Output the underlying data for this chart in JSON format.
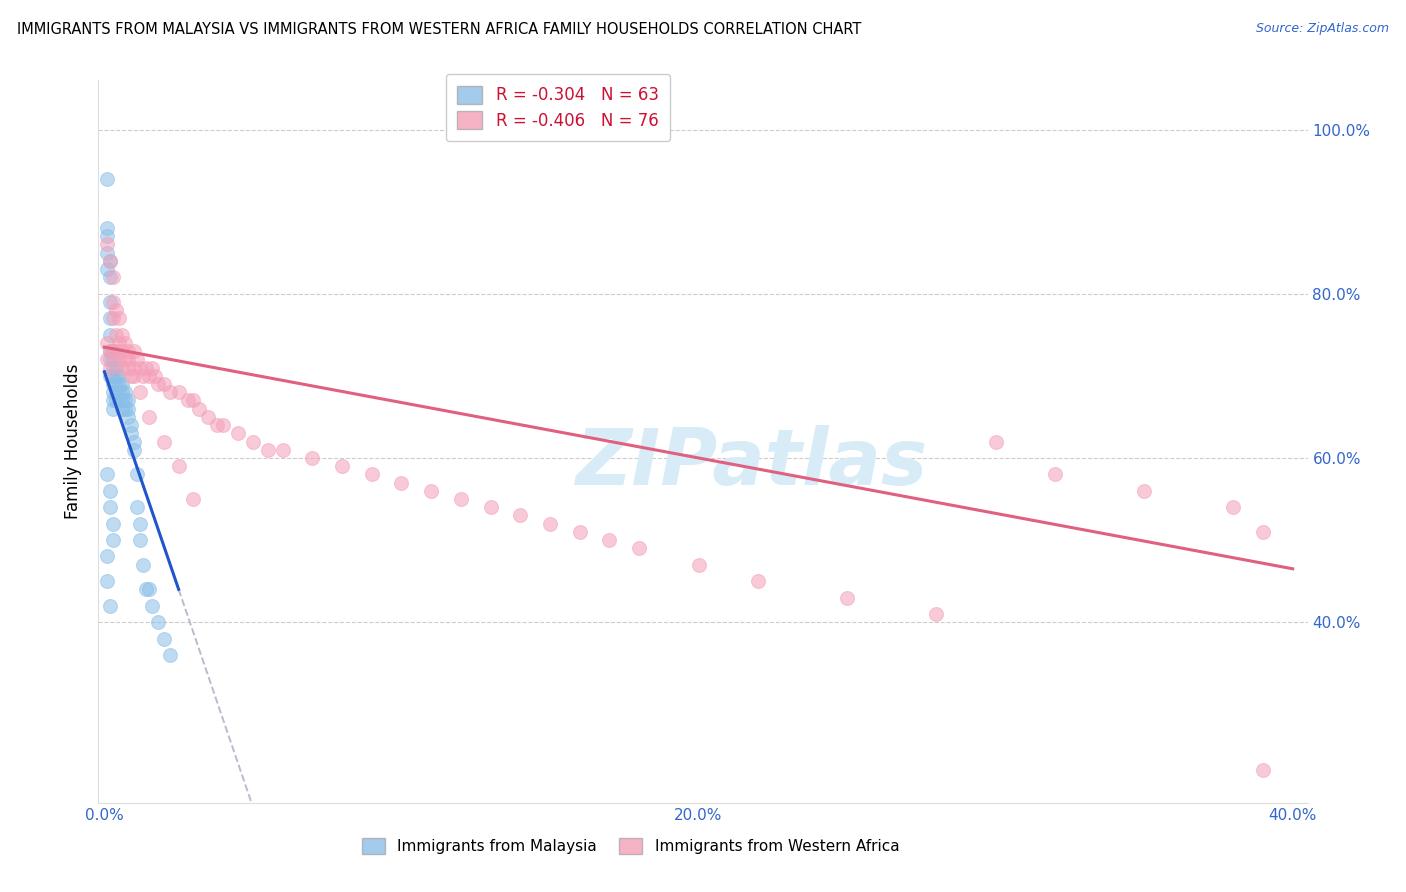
{
  "title": "IMMIGRANTS FROM MALAYSIA VS IMMIGRANTS FROM WESTERN AFRICA FAMILY HOUSEHOLDS CORRELATION CHART",
  "source_text": "Source: ZipAtlas.com",
  "ylabel": "Family Households",
  "right_ytick_labels": [
    "100.0%",
    "80.0%",
    "60.0%",
    "40.0%"
  ],
  "right_ytick_values": [
    1.0,
    0.8,
    0.6,
    0.4
  ],
  "xlim": [
    -0.002,
    0.405
  ],
  "ylim": [
    0.18,
    1.06
  ],
  "xtick_positions": [
    0.0,
    0.05,
    0.1,
    0.15,
    0.2,
    0.25,
    0.3,
    0.35,
    0.4
  ],
  "xtick_labels": [
    "0.0%",
    "",
    "",
    "",
    "20.0%",
    "",
    "",
    "",
    "40.0%"
  ],
  "grid_yticks": [
    0.4,
    0.6,
    0.8,
    1.0
  ],
  "grid_color": "#cccccc",
  "background_color": "#ffffff",
  "malaysia_color": "#8bbfe8",
  "western_africa_color": "#f4a0b8",
  "malaysia_line_color": "#2255cc",
  "western_africa_line_color": "#e06080",
  "dashed_line_color": "#bbbbcc",
  "R_malaysia": -0.304,
  "N_malaysia": 63,
  "R_western_africa": -0.406,
  "N_western_africa": 76,
  "legend_label_1": "Immigrants from Malaysia",
  "legend_label_2": "Immigrants from Western Africa",
  "watermark": "ZIPatlas",
  "watermark_color": "#d8ecf8",
  "malaysia_x": [
    0.001,
    0.001,
    0.001,
    0.001,
    0.001,
    0.002,
    0.002,
    0.002,
    0.002,
    0.002,
    0.002,
    0.002,
    0.002,
    0.003,
    0.003,
    0.003,
    0.003,
    0.003,
    0.003,
    0.003,
    0.003,
    0.004,
    0.004,
    0.004,
    0.004,
    0.004,
    0.005,
    0.005,
    0.005,
    0.005,
    0.006,
    0.006,
    0.006,
    0.006,
    0.007,
    0.007,
    0.007,
    0.008,
    0.008,
    0.008,
    0.009,
    0.009,
    0.01,
    0.01,
    0.011,
    0.011,
    0.012,
    0.012,
    0.013,
    0.014,
    0.015,
    0.016,
    0.018,
    0.02,
    0.022,
    0.001,
    0.002,
    0.002,
    0.003,
    0.003,
    0.001,
    0.001,
    0.002
  ],
  "malaysia_y": [
    0.94,
    0.88,
    0.87,
    0.85,
    0.83,
    0.84,
    0.82,
    0.79,
    0.77,
    0.75,
    0.73,
    0.72,
    0.7,
    0.73,
    0.72,
    0.71,
    0.7,
    0.69,
    0.68,
    0.67,
    0.66,
    0.71,
    0.7,
    0.69,
    0.68,
    0.67,
    0.7,
    0.69,
    0.68,
    0.67,
    0.69,
    0.68,
    0.67,
    0.66,
    0.68,
    0.67,
    0.66,
    0.67,
    0.66,
    0.65,
    0.64,
    0.63,
    0.62,
    0.61,
    0.58,
    0.54,
    0.52,
    0.5,
    0.47,
    0.44,
    0.44,
    0.42,
    0.4,
    0.38,
    0.36,
    0.58,
    0.56,
    0.54,
    0.52,
    0.5,
    0.48,
    0.45,
    0.42
  ],
  "western_africa_x": [
    0.001,
    0.001,
    0.002,
    0.002,
    0.003,
    0.003,
    0.003,
    0.004,
    0.004,
    0.005,
    0.005,
    0.006,
    0.006,
    0.007,
    0.007,
    0.008,
    0.008,
    0.009,
    0.01,
    0.01,
    0.011,
    0.012,
    0.013,
    0.014,
    0.015,
    0.016,
    0.017,
    0.018,
    0.02,
    0.022,
    0.025,
    0.028,
    0.03,
    0.032,
    0.035,
    0.038,
    0.04,
    0.045,
    0.05,
    0.055,
    0.06,
    0.07,
    0.08,
    0.09,
    0.1,
    0.11,
    0.12,
    0.13,
    0.14,
    0.15,
    0.16,
    0.17,
    0.18,
    0.2,
    0.22,
    0.25,
    0.28,
    0.3,
    0.32,
    0.35,
    0.38,
    0.39,
    0.001,
    0.002,
    0.003,
    0.004,
    0.005,
    0.006,
    0.008,
    0.01,
    0.012,
    0.015,
    0.02,
    0.025,
    0.03,
    0.39
  ],
  "western_africa_y": [
    0.74,
    0.72,
    0.73,
    0.71,
    0.82,
    0.77,
    0.73,
    0.75,
    0.73,
    0.74,
    0.72,
    0.73,
    0.71,
    0.74,
    0.72,
    0.73,
    0.71,
    0.7,
    0.73,
    0.71,
    0.72,
    0.71,
    0.7,
    0.71,
    0.7,
    0.71,
    0.7,
    0.69,
    0.69,
    0.68,
    0.68,
    0.67,
    0.67,
    0.66,
    0.65,
    0.64,
    0.64,
    0.63,
    0.62,
    0.61,
    0.61,
    0.6,
    0.59,
    0.58,
    0.57,
    0.56,
    0.55,
    0.54,
    0.53,
    0.52,
    0.51,
    0.5,
    0.49,
    0.47,
    0.45,
    0.43,
    0.41,
    0.62,
    0.58,
    0.56,
    0.54,
    0.51,
    0.86,
    0.84,
    0.79,
    0.78,
    0.77,
    0.75,
    0.72,
    0.7,
    0.68,
    0.65,
    0.62,
    0.59,
    0.55,
    0.22
  ],
  "malaysia_line_x0": 0.0,
  "malaysia_line_y0": 0.705,
  "malaysia_line_x1": 0.025,
  "malaysia_line_y1": 0.44,
  "western_africa_line_x0": 0.0,
  "western_africa_line_y0": 0.735,
  "western_africa_line_x1": 0.4,
  "western_africa_line_y1": 0.465
}
